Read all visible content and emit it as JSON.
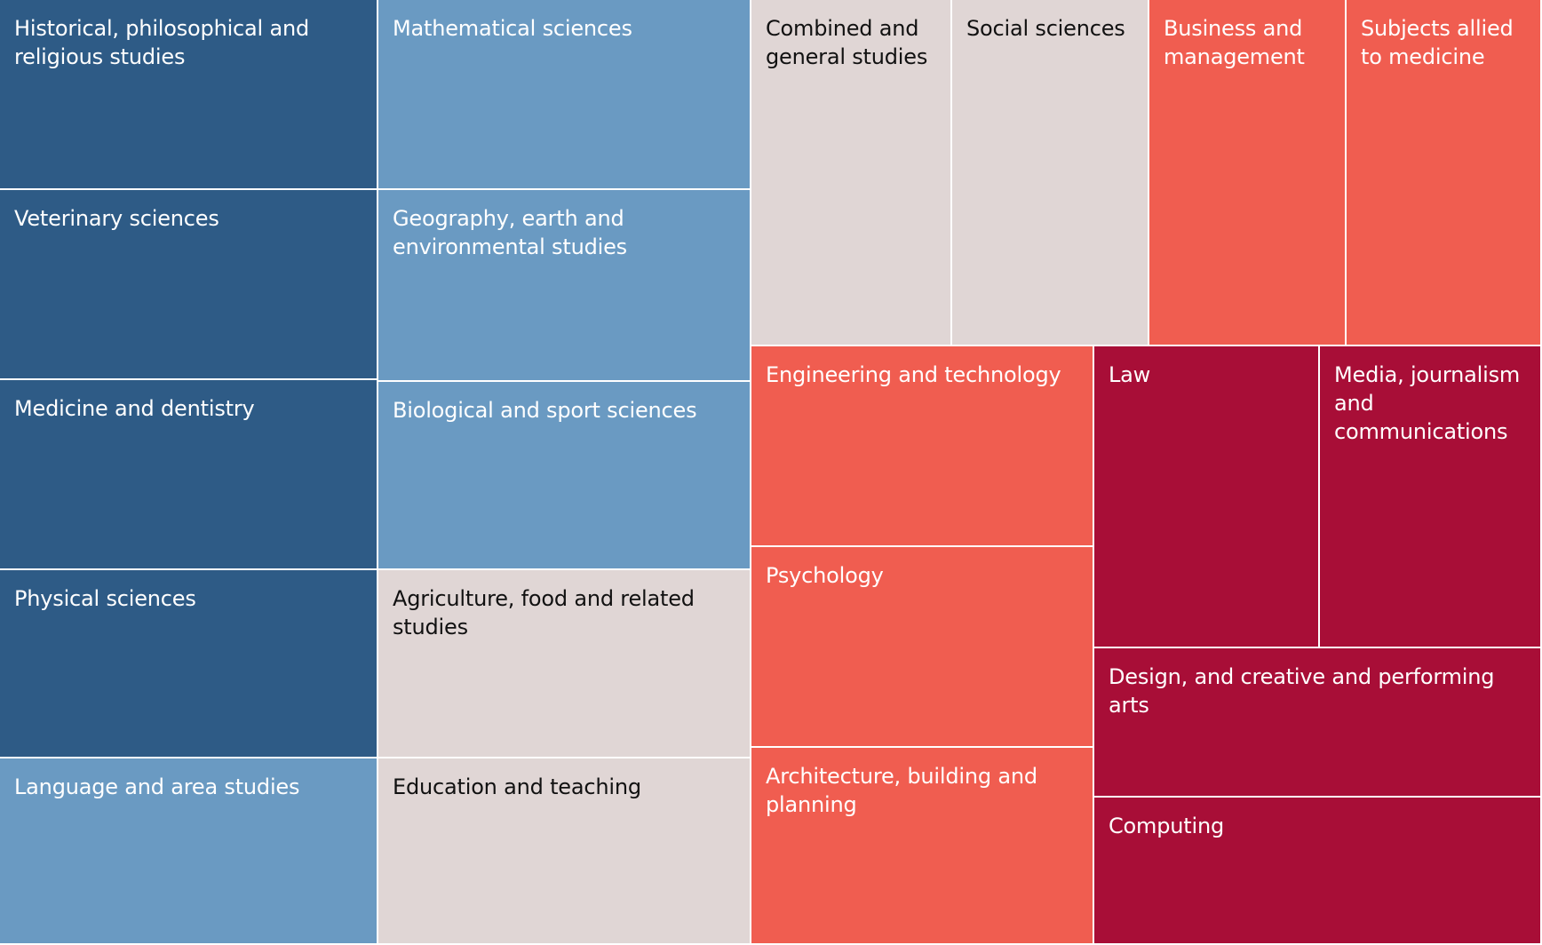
{
  "palette": {
    "dark_blue": "#2e5b86",
    "light_blue": "#6a9ac2",
    "neutral": "#e0d6d5",
    "salmon": "#f05d50",
    "crimson": "#a80e37",
    "text_light": "#ffffff",
    "text_dark": "#111111"
  },
  "chart_data": {
    "type": "treemap",
    "items": [
      {
        "label": "Historical, philosophical and religious studies",
        "color_key": "dark_blue"
      },
      {
        "label": "Veterinary sciences",
        "color_key": "dark_blue"
      },
      {
        "label": "Medicine and dentistry",
        "color_key": "dark_blue"
      },
      {
        "label": "Physical sciences",
        "color_key": "dark_blue"
      },
      {
        "label": "Language and area studies",
        "color_key": "light_blue"
      },
      {
        "label": "Mathematical sciences",
        "color_key": "light_blue"
      },
      {
        "label": "Geography, earth and environmental studies",
        "color_key": "light_blue"
      },
      {
        "label": "Biological and sport sciences",
        "color_key": "light_blue"
      },
      {
        "label": "Agriculture, food and related studies",
        "color_key": "neutral"
      },
      {
        "label": "Education and teaching",
        "color_key": "neutral"
      },
      {
        "label": "Combined and general studies",
        "color_key": "neutral"
      },
      {
        "label": "Social sciences",
        "color_key": "neutral"
      },
      {
        "label": "Business and management",
        "color_key": "salmon"
      },
      {
        "label": "Subjects allied to medicine",
        "color_key": "salmon"
      },
      {
        "label": "Engineering and technology",
        "color_key": "salmon"
      },
      {
        "label": "Psychology",
        "color_key": "salmon"
      },
      {
        "label": "Architecture, building and planning",
        "color_key": "salmon"
      },
      {
        "label": "Law",
        "color_key": "crimson"
      },
      {
        "label": "Media, journalism and communications",
        "color_key": "crimson"
      },
      {
        "label": "Design, and creative and performing arts",
        "color_key": "crimson"
      },
      {
        "label": "Computing",
        "color_key": "crimson"
      }
    ]
  }
}
